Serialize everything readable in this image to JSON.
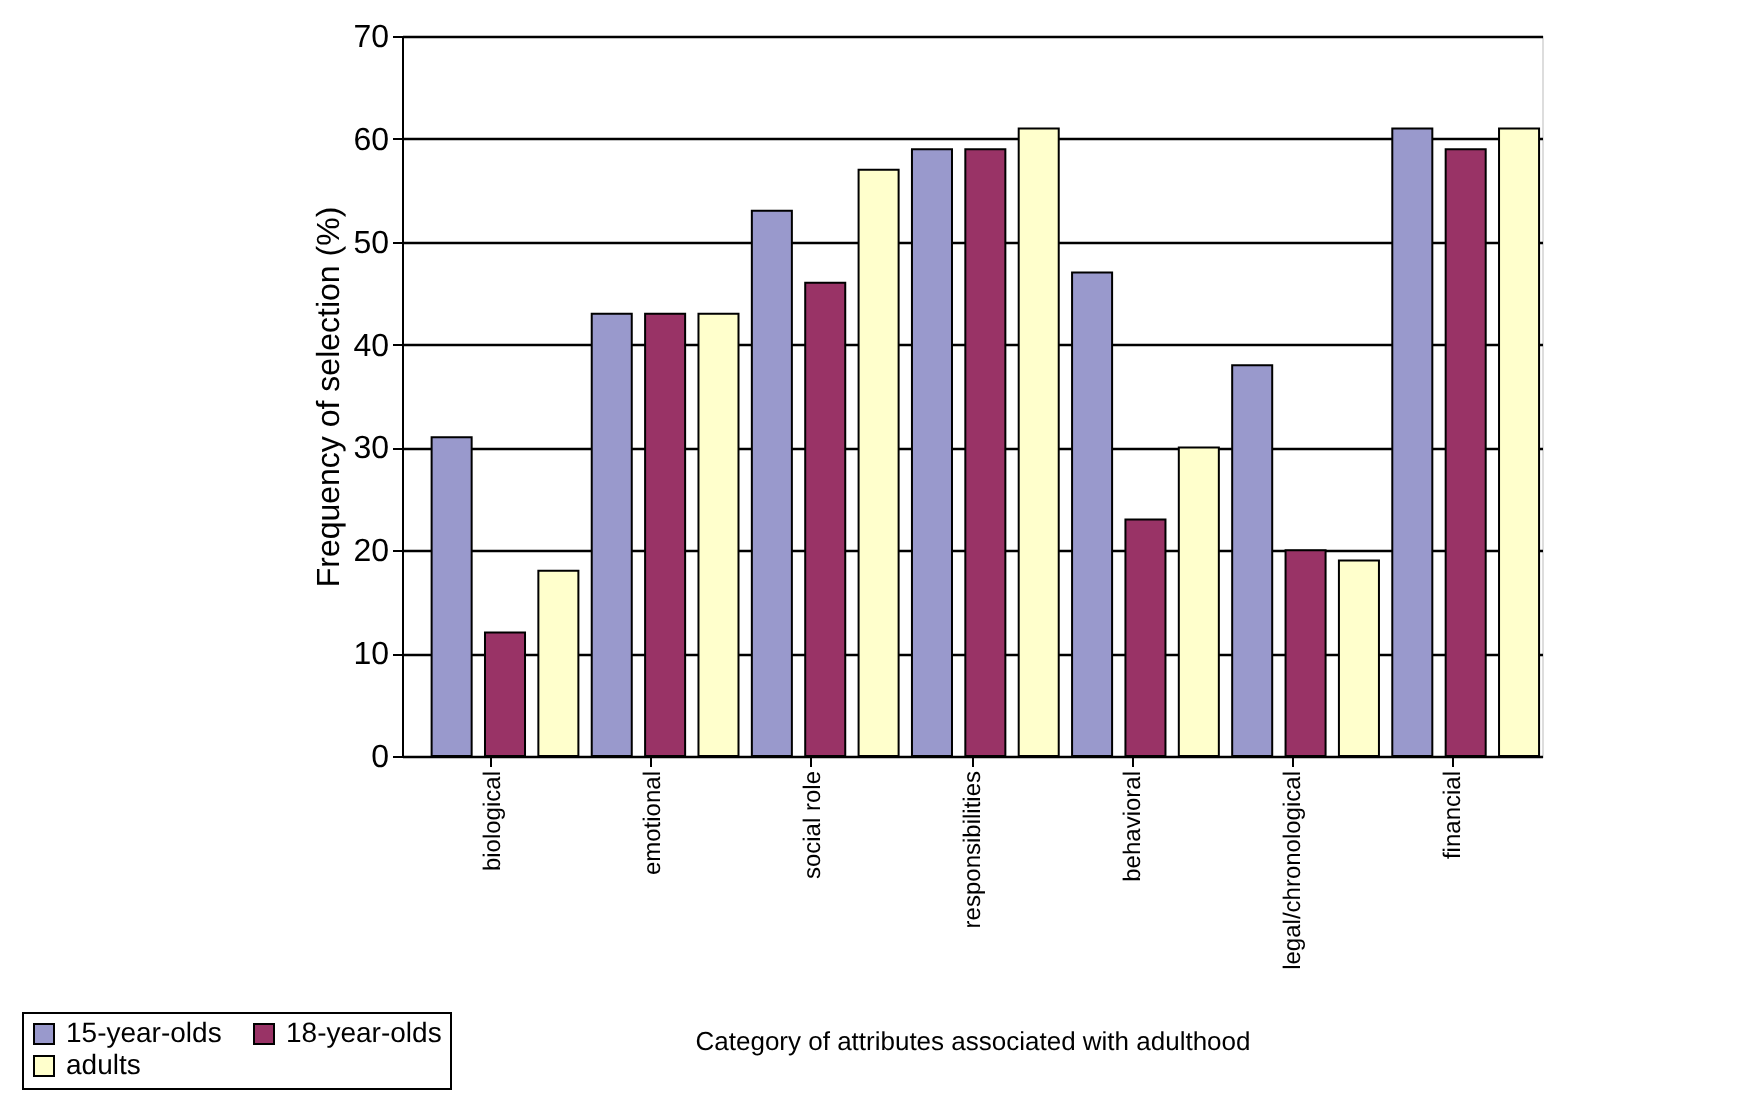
{
  "chart_data": {
    "type": "bar",
    "categories": [
      "biological",
      "emotional",
      "social role",
      "responsibilities",
      "behavioral",
      "legal/chronological",
      "financial"
    ],
    "series": [
      {
        "name": "15-year-olds",
        "color": "#9999cc",
        "values": [
          31,
          43,
          53,
          59,
          47,
          38,
          61
        ]
      },
      {
        "name": "18-year-olds",
        "color": "#993366",
        "values": [
          12,
          43,
          46,
          59,
          23,
          20,
          59
        ]
      },
      {
        "name": "adults",
        "color": "#ffffcc",
        "values": [
          18,
          43,
          57,
          61,
          30,
          19,
          61
        ]
      }
    ],
    "xlabel": "Category of attributes associated with adulthood",
    "ylabel": "Frequency of selection (%)",
    "ylim": [
      0,
      70
    ],
    "yticks": [
      0,
      10,
      20,
      30,
      40,
      50,
      60,
      70
    ],
    "grid": "y",
    "legend": "bottom left"
  }
}
